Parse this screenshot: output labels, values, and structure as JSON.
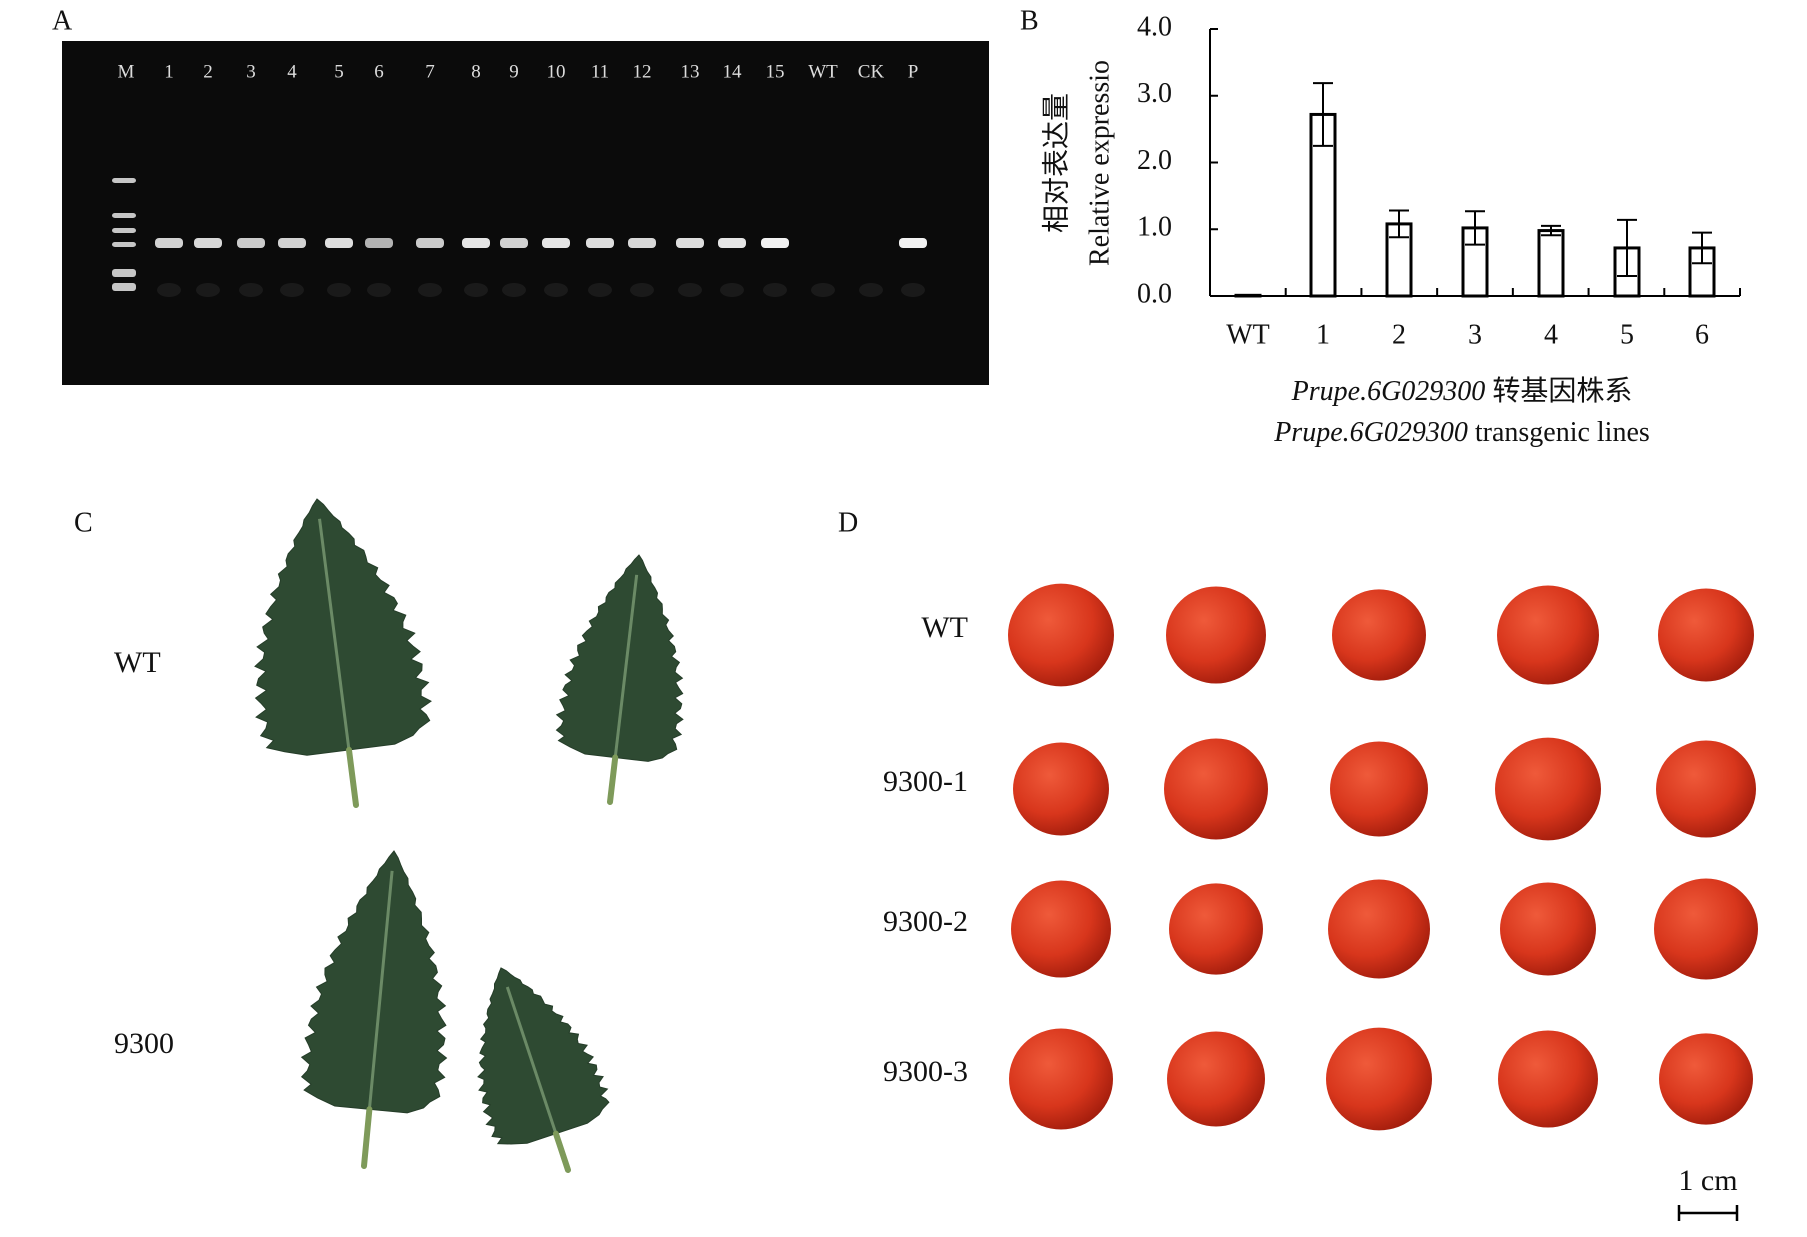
{
  "panel_labels": [
    "A",
    "B",
    "C",
    "D"
  ],
  "gel": {
    "lanes": [
      "M",
      "1",
      "2",
      "3",
      "4",
      "5",
      "6",
      "7",
      "8",
      "9",
      "10",
      "11",
      "12",
      "13",
      "14",
      "15",
      "WT",
      "CK",
      "P"
    ]
  },
  "chart_data": {
    "type": "bar",
    "ylabel": [
      "相对表达量",
      "Relative expressio"
    ],
    "xlabel": [
      {
        "italic": "Prupe.6G029300",
        "text": " 转基因株系"
      },
      {
        "italic": "Prupe.6G029300",
        "text": " transgenic lines"
      }
    ],
    "categories": [
      "WT",
      "1",
      "2",
      "3",
      "4",
      "5",
      "6"
    ],
    "values": [
      0.01,
      2.72,
      1.08,
      1.02,
      0.98,
      0.72,
      0.72
    ],
    "errors": [
      0,
      0.47,
      0.2,
      0.25,
      0.07,
      0.42,
      0.23
    ],
    "color": "#000000",
    "ylim": [
      0,
      4
    ],
    "yticks": [
      {
        "value": 0,
        "label": "0.0"
      },
      {
        "value": 1,
        "label": "1.0"
      },
      {
        "value": 2,
        "label": "2.0"
      },
      {
        "value": 3,
        "label": "3.0"
      },
      {
        "value": 4,
        "label": "4.0"
      }
    ]
  },
  "leaves": {
    "rows": [
      "WT",
      "9300"
    ]
  },
  "fruits": {
    "rows": [
      "WT",
      "9300-1",
      "9300-2",
      "9300-3"
    ],
    "scale_bar": "1 cm"
  }
}
